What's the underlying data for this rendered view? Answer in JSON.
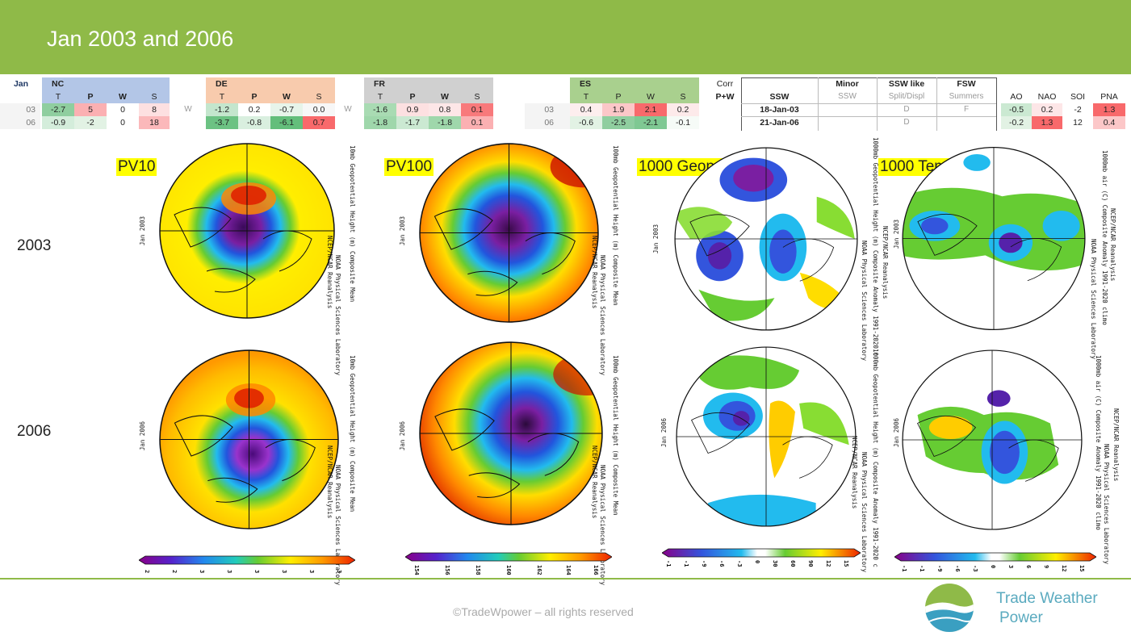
{
  "slide": {
    "title": "Jan 2003 and 2006"
  },
  "table": {
    "month": "Jan",
    "nc": {
      "label": "NC",
      "cols": [
        "T",
        "P",
        "W",
        "S"
      ],
      "rows": [
        [
          "-2.7",
          "5",
          "0",
          "8"
        ],
        [
          "-0.9",
          "-2",
          "0",
          "18"
        ]
      ]
    },
    "de": {
      "label": "DE",
      "cols": [
        "T",
        "P",
        "W",
        "S"
      ],
      "rows": [
        [
          "-1.2",
          "0.2",
          "-0.7",
          "0.0"
        ],
        [
          "-3.7",
          "-0.8",
          "-6.1",
          "0.7"
        ]
      ]
    },
    "fr": {
      "label": "FR",
      "cols": [
        "T",
        "P",
        "W",
        "S"
      ],
      "rows": [
        [
          "-1.6",
          "0.9",
          "0.8",
          "0.1"
        ],
        [
          "-1.8",
          "-1.7",
          "-1.8",
          "0.1"
        ]
      ]
    },
    "es": {
      "label": "ES",
      "cols": [
        "T",
        "P",
        "W",
        "S"
      ],
      "rows": [
        [
          "0.4",
          "1.9",
          "2.1",
          "0.2"
        ],
        [
          "-0.6",
          "-2.5",
          "-2.1",
          "-0.1"
        ]
      ]
    },
    "row_labels": [
      "03",
      "06"
    ],
    "w_marker": "W",
    "corr": {
      "label": "Corr",
      "sub": "P+W"
    },
    "ssw": {
      "label": "SSW",
      "rows": [
        "18-Jan-03",
        "21-Jan-06"
      ]
    },
    "minor": {
      "label": "Minor",
      "sub": "SSW"
    },
    "ssw_like": {
      "label": "SSW like",
      "sub": "Split/Displ",
      "rows": [
        "D",
        "D"
      ]
    },
    "fsw": {
      "label": "FSW",
      "sub": "Summers",
      "rows": [
        "F",
        ""
      ]
    },
    "indices": {
      "cols": [
        "AO",
        "NAO",
        "SOI",
        "PNA"
      ],
      "rows": [
        [
          "-0.5",
          "0.2",
          "-2",
          "1.3"
        ],
        [
          "-0.2",
          "1.3",
          "12",
          "0.4"
        ]
      ]
    },
    "colors": {
      "warm_strong": "#f8696b",
      "warm_mid": "#fbb0b2",
      "warm_light": "#fde0e1",
      "cool_strong": "#63be7b",
      "cool_mid": "#a9dbb3",
      "cool_light": "#e2f2e4"
    }
  },
  "maps": {
    "labels": [
      "PV10",
      "PV100",
      "1000 Geopot",
      "1000 Temp"
    ],
    "years": [
      "2003",
      "2006"
    ],
    "dates": [
      "Jan 2003",
      "Jan 2006"
    ],
    "side_text": [
      [
        "10mb Geopotential Height (m) Composite Mean",
        "NCEP/NCAR Reanalysis",
        "NOAA Physical Sciences Laboratory"
      ],
      [
        "100mb Geopotential Height (m) Composite Mean",
        "NCEP/NCAR Reanalysis",
        "NOAA Physical Sciences Laboratory"
      ],
      [
        "1000mb Geopotential Height (m) Composite Anomaly 1991-2020 c",
        "NCEP/NCAR Reanalysis",
        "NOAA Physical Sciences Laboratory"
      ],
      [
        "1000mb air (C) Composite Anomaly 1991-2020 climo",
        "NCEP/NCAR Reanalysis",
        "NOAA Physical Sciences Laboratory"
      ]
    ],
    "colorbars": [
      {
        "ticks": [
          "2",
          "2",
          "3",
          "3",
          "3",
          "3",
          "3",
          "3"
        ]
      },
      {
        "ticks": [
          "154",
          "156",
          "158",
          "160",
          "162",
          "164",
          "166"
        ]
      },
      {
        "ticks": [
          "-1",
          "-1",
          "-9",
          "-6",
          "-3",
          "0",
          "30",
          "60",
          "90",
          "12",
          "15"
        ]
      },
      {
        "ticks": [
          "-1",
          "-1",
          "-9",
          "-6",
          "-3",
          "0",
          "3",
          "6",
          "9",
          "12",
          "15"
        ]
      }
    ]
  },
  "footer": {
    "copyright": "©TradeWpower – all rights reserved",
    "brand_line1": "Trade Weather",
    "brand_line2": "Power"
  }
}
